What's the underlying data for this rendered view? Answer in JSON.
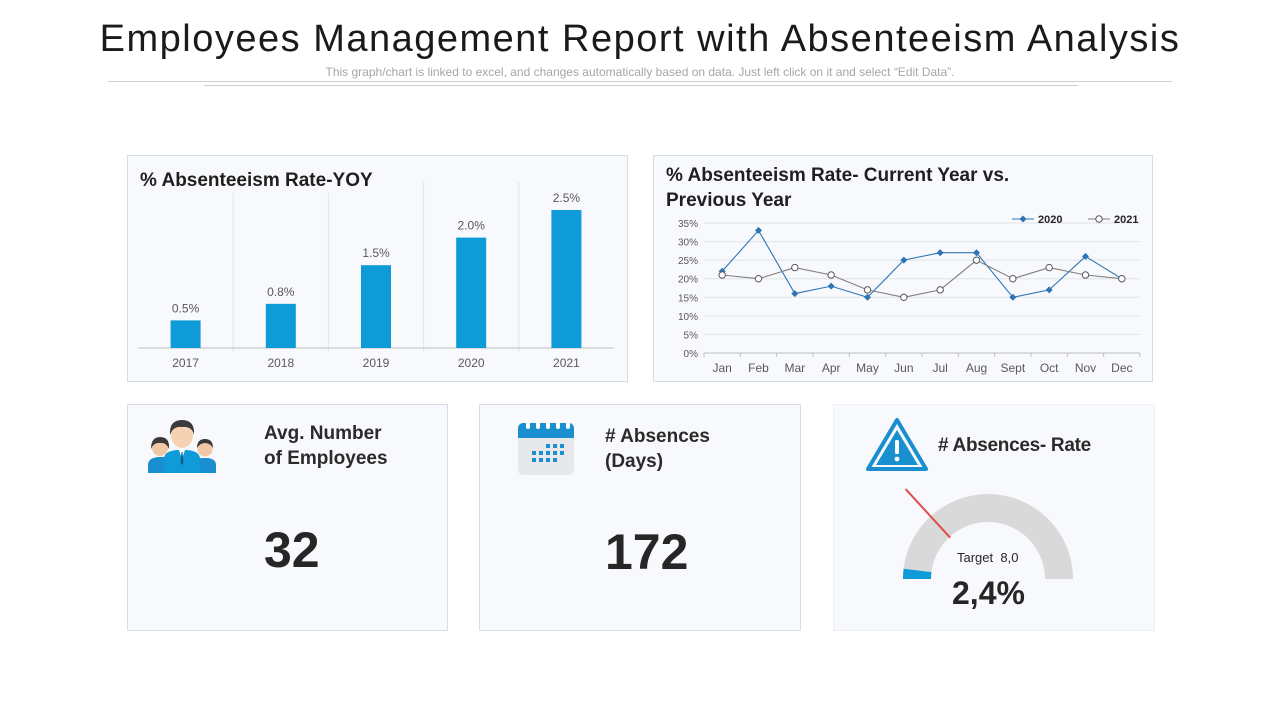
{
  "header": {
    "title": "Employees Management Report with Absenteeism Analysis",
    "subtitle": "This graph/chart is linked to excel, and changes automatically based on data. Just left click on it and select “Edit Data”."
  },
  "colors": {
    "accent": "#0f9ad8",
    "line2020": "#2f75b5",
    "line2021": "#7f7f7f",
    "gauge_bg": "#d9d9d9",
    "needle": "#e04b4b"
  },
  "yoy": {
    "title": "% Absenteeism Rate-YOY"
  },
  "cy_vs_py": {
    "title_line1": "% Absenteeism Rate- Current Year vs.",
    "title_line2": "Previous Year"
  },
  "chart_data": [
    {
      "type": "bar",
      "title": "% Absenteeism Rate-YOY",
      "categories": [
        "2017",
        "2018",
        "2019",
        "2020",
        "2021"
      ],
      "values": [
        0.5,
        0.8,
        1.5,
        2.0,
        2.5
      ],
      "labels": [
        "0.5%",
        "0.8%",
        "1.5%",
        "2.0%",
        "2.5%"
      ],
      "ylim": [
        0,
        2.5
      ],
      "xlabel": "",
      "ylabel": ""
    },
    {
      "type": "line",
      "title": "% Absenteeism Rate- Current Year vs. Previous Year",
      "categories": [
        "Jan",
        "Feb",
        "Mar",
        "Apr",
        "May",
        "Jun",
        "Jul",
        "Aug",
        "Sept",
        "Oct",
        "Nov",
        "Dec"
      ],
      "series": [
        {
          "name": "2020",
          "values": [
            22,
            33,
            16,
            18,
            15,
            25,
            27,
            27,
            15,
            17,
            26,
            20
          ]
        },
        {
          "name": "2021",
          "values": [
            21,
            20,
            23,
            21,
            17,
            15,
            17,
            25,
            20,
            23,
            21,
            20
          ]
        }
      ],
      "ylim": [
        0,
        35
      ],
      "yticks": [
        "0%",
        "5%",
        "10%",
        "15%",
        "20%",
        "25%",
        "30%",
        "35%"
      ],
      "legend": "top-right"
    }
  ],
  "kpis": {
    "employees": {
      "label_line1": "Avg. Number",
      "label_line2": "of Employees",
      "value": "32",
      "icon": "people-icon"
    },
    "absences": {
      "label_line1": "# Absences",
      "label_line2": "(Days)",
      "value": "172",
      "icon": "calendar-icon"
    },
    "rate": {
      "label": "# Absences- Rate",
      "value": "2,4%",
      "target_text": "Target  8,0",
      "gauge_value": 2.4,
      "gauge_target": 8.0,
      "gauge_max": 100,
      "icon": "warning-icon"
    }
  }
}
